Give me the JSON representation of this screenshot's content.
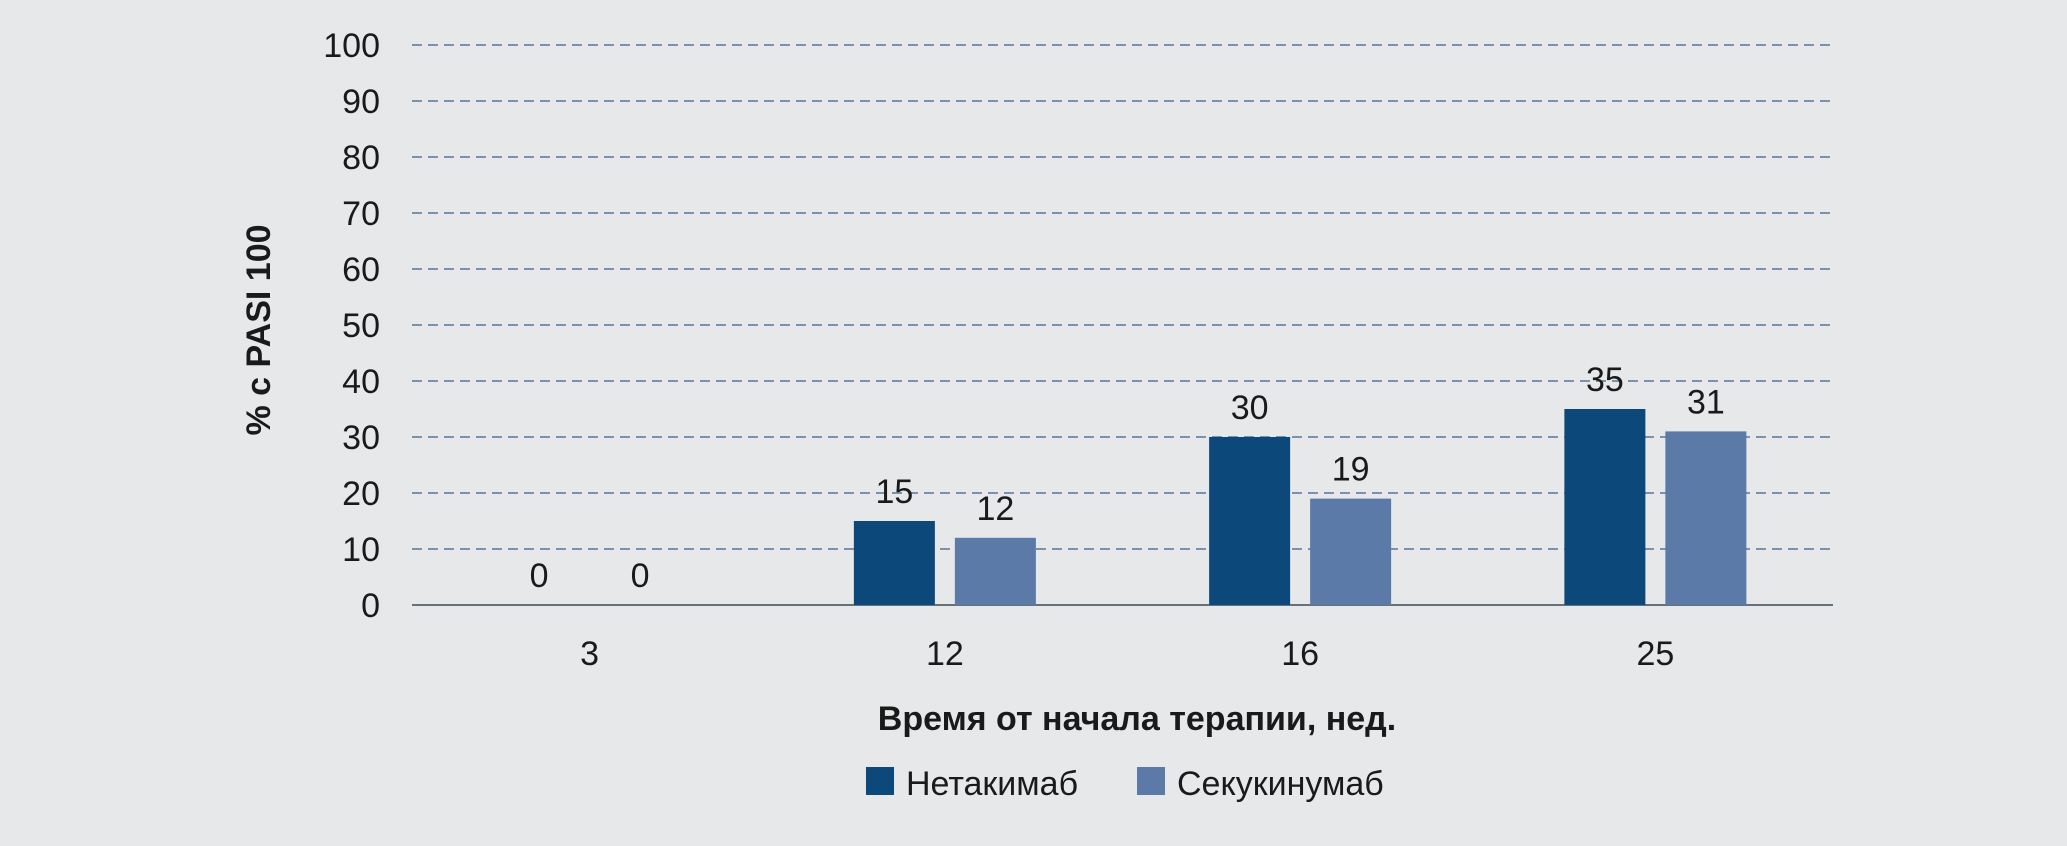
{
  "chart_data": {
    "type": "bar",
    "categories": [
      "3",
      "12",
      "16",
      "25"
    ],
    "series": [
      {
        "name": "Нетакимаб",
        "values": [
          0,
          15,
          30,
          35
        ],
        "color": "#0d487a"
      },
      {
        "name": "Секукинумаб",
        "values": [
          0,
          12,
          19,
          31
        ],
        "color": "#5b7aa8"
      }
    ],
    "title": "",
    "xlabel": "Время от начала терапии, нед.",
    "ylabel": "% с PASI 100",
    "ylim": [
      0,
      100
    ],
    "yticks": [
      0,
      10,
      20,
      30,
      40,
      50,
      60,
      70,
      80,
      90,
      100
    ],
    "grid": true,
    "grid_style": "dashed",
    "legend_position": "bottom-center",
    "colors": {
      "background": "#e6e8ea",
      "grid": "#3a5f8a",
      "axis": "#3a4a5a"
    }
  }
}
